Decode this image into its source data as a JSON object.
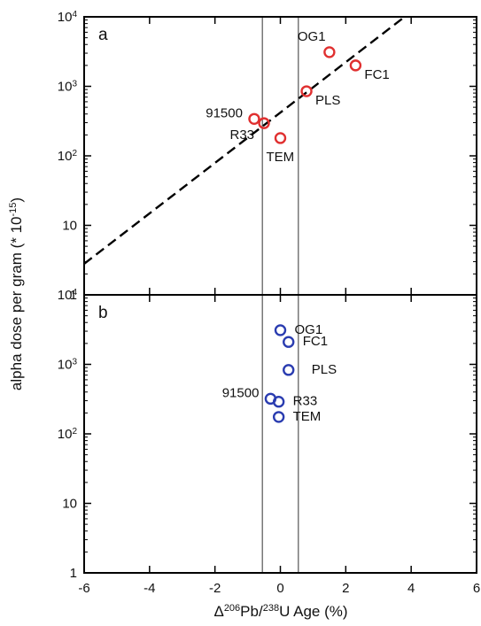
{
  "chart_data": {
    "type": "scatter",
    "xlabel": {
      "delta": "Δ",
      "sup1": "206",
      "pb": "Pb/",
      "sup2": "238",
      "rest": "U Age (%)"
    },
    "ylabel": {
      "main": "alpha dose per gram (* 10",
      "sup": "-15",
      "close": ")"
    },
    "xlim": [
      -6,
      6
    ],
    "ylim": [
      1,
      10000
    ],
    "y_scale": "log",
    "x_ticks": [
      -6,
      -4,
      -2,
      0,
      2,
      4,
      6
    ],
    "y_ticks": [
      {
        "value": 1,
        "base": "1",
        "exp": ""
      },
      {
        "value": 10,
        "base": "10",
        "exp": ""
      },
      {
        "value": 100,
        "base": "10",
        "exp": "2"
      },
      {
        "value": 1000,
        "base": "10",
        "exp": "3"
      },
      {
        "value": 10000,
        "base": "10",
        "exp": "4"
      }
    ],
    "reference_lines_x": [
      -0.55,
      0.55
    ],
    "reference_line_color": "#555555",
    "panels": [
      {
        "label": "a",
        "marker_color": "#e03030",
        "trend_line": {
          "x": [
            -6,
            3.8
          ],
          "y": [
            2.8,
            10000
          ]
        },
        "points": [
          {
            "name": "OG1",
            "x": 1.5,
            "y": 3100,
            "label_pos": "above-left"
          },
          {
            "name": "FC1",
            "x": 2.3,
            "y": 2000,
            "label_pos": "below-right"
          },
          {
            "name": "PLS",
            "x": 0.8,
            "y": 850,
            "label_pos": "below-right"
          },
          {
            "name": "91500",
            "x": -0.8,
            "y": 340,
            "label_pos": "left"
          },
          {
            "name": "R33",
            "x": -0.5,
            "y": 295,
            "label_pos": "below-left"
          },
          {
            "name": "TEM",
            "x": 0.0,
            "y": 180,
            "label_pos": "below"
          }
        ]
      },
      {
        "label": "b",
        "marker_color": "#2a3cb0",
        "points": [
          {
            "name": "OG1",
            "x": 0.0,
            "y": 3100,
            "label_pos": "right"
          },
          {
            "name": "FC1",
            "x": 0.25,
            "y": 2100,
            "label_pos": "right"
          },
          {
            "name": "PLS",
            "x": 0.25,
            "y": 830,
            "label_pos": "right-far"
          },
          {
            "name": "91500",
            "x": -0.3,
            "y": 320,
            "label_pos": "left"
          },
          {
            "name": "R33",
            "x": -0.05,
            "y": 290,
            "label_pos": "right"
          },
          {
            "name": "TEM",
            "x": -0.05,
            "y": 175,
            "label_pos": "right"
          }
        ]
      }
    ]
  }
}
